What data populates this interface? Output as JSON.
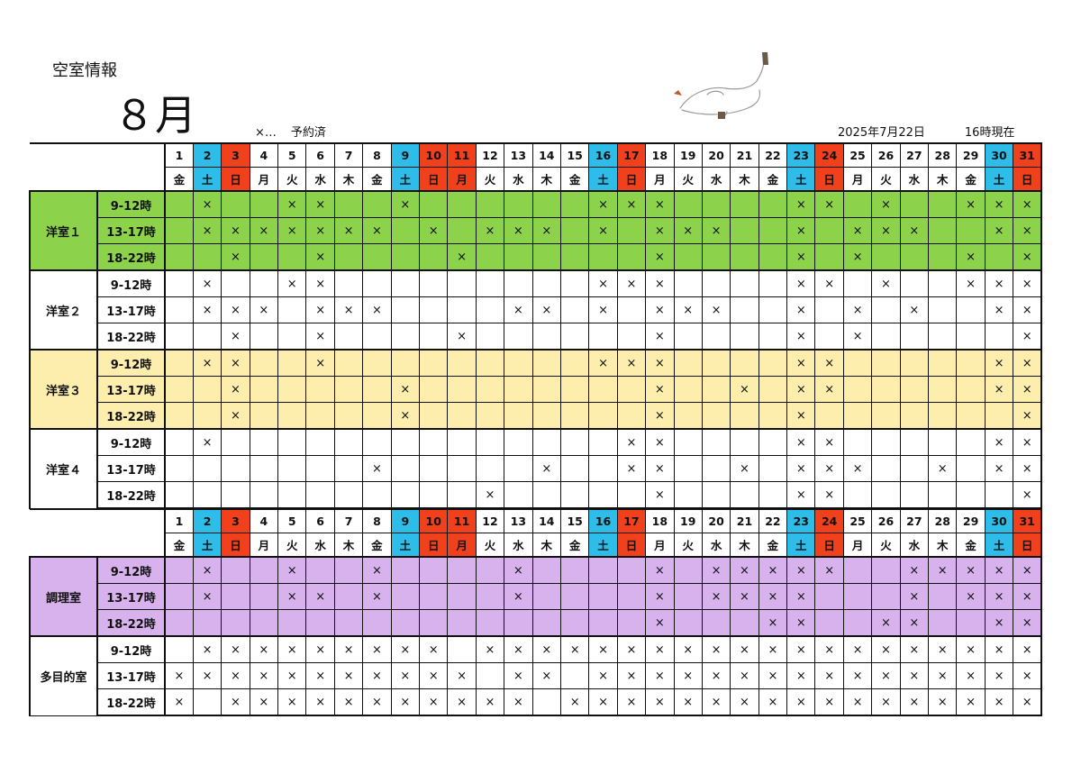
{
  "doc": {
    "title": "空室情報",
    "month": "８月",
    "legend_symbol": "×…",
    "legend_text": "予約済",
    "date": "2025年7月22日",
    "time": "16時現在"
  },
  "colors": {
    "saturday": "#2ebde9",
    "sunday": "#f0401c",
    "green": "#8cd24a",
    "yellow": "#fdeead",
    "purple": "#d7b2ec"
  },
  "days": [
    1,
    2,
    3,
    4,
    5,
    6,
    7,
    8,
    9,
    10,
    11,
    12,
    13,
    14,
    15,
    16,
    17,
    18,
    19,
    20,
    21,
    22,
    23,
    24,
    25,
    26,
    27,
    28,
    29,
    30,
    31
  ],
  "weekdays": [
    "金",
    "土",
    "日",
    "月",
    "火",
    "水",
    "木",
    "金",
    "土",
    "日",
    "月",
    "火",
    "水",
    "木",
    "金",
    "土",
    "日",
    "月",
    "火",
    "水",
    "木",
    "金",
    "土",
    "日",
    "月",
    "火",
    "水",
    "木",
    "金",
    "土",
    "日"
  ],
  "day_types": [
    "",
    "sat",
    "sun",
    "",
    "",
    "",
    "",
    "",
    "sat",
    "sun",
    "sun",
    "",
    "",
    "",
    "",
    "sat",
    "sun",
    "",
    "",
    "",
    "",
    "",
    "sat",
    "sun",
    "",
    "",
    "",
    "",
    "",
    "sat",
    "sun"
  ],
  "mark": "×",
  "tables": [
    {
      "rooms": [
        {
          "name": "洋室１",
          "color": "green",
          "slots": [
            {
              "time": "9-12時",
              "booked": [
                2,
                5,
                6,
                9,
                16,
                17,
                18,
                23,
                24,
                26,
                29,
                30,
                31
              ]
            },
            {
              "time": "13-17時",
              "booked": [
                2,
                3,
                4,
                5,
                6,
                7,
                8,
                10,
                12,
                13,
                14,
                16,
                18,
                19,
                20,
                23,
                25,
                26,
                27,
                30,
                31
              ]
            },
            {
              "time": "18-22時",
              "booked": [
                3,
                6,
                11,
                18,
                23,
                25,
                29,
                31
              ]
            }
          ]
        },
        {
          "name": "洋室２",
          "color": "white",
          "slots": [
            {
              "time": "9-12時",
              "booked": [
                2,
                5,
                6,
                16,
                17,
                18,
                23,
                24,
                26,
                29,
                30,
                31
              ]
            },
            {
              "time": "13-17時",
              "booked": [
                2,
                3,
                4,
                6,
                7,
                8,
                13,
                14,
                16,
                18,
                19,
                20,
                23,
                25,
                27,
                30,
                31
              ]
            },
            {
              "time": "18-22時",
              "booked": [
                3,
                6,
                11,
                18,
                23,
                25,
                31
              ]
            }
          ]
        },
        {
          "name": "洋室３",
          "color": "yellow",
          "slots": [
            {
              "time": "9-12時",
              "booked": [
                2,
                3,
                6,
                16,
                17,
                18,
                23,
                24,
                30,
                31
              ]
            },
            {
              "time": "13-17時",
              "booked": [
                3,
                9,
                18,
                21,
                23,
                24,
                30,
                31
              ]
            },
            {
              "time": "18-22時",
              "booked": [
                3,
                9,
                18,
                23,
                31
              ]
            }
          ]
        },
        {
          "name": "洋室４",
          "color": "white",
          "slots": [
            {
              "time": "9-12時",
              "booked": [
                2,
                17,
                18,
                23,
                24,
                30,
                31
              ]
            },
            {
              "time": "13-17時",
              "booked": [
                8,
                14,
                17,
                18,
                21,
                23,
                24,
                25,
                28,
                30,
                31
              ]
            },
            {
              "time": "18-22時",
              "booked": [
                12,
                18,
                23,
                24,
                31
              ]
            }
          ]
        }
      ]
    },
    {
      "rooms": [
        {
          "name": "調理室",
          "color": "purple",
          "slots": [
            {
              "time": "9-12時",
              "booked": [
                2,
                5,
                8,
                13,
                18,
                20,
                21,
                22,
                23,
                24,
                27,
                28,
                29,
                30,
                31
              ]
            },
            {
              "time": "13-17時",
              "booked": [
                2,
                5,
                6,
                8,
                13,
                18,
                20,
                21,
                22,
                23,
                27,
                29,
                30,
                31
              ]
            },
            {
              "time": "18-22時",
              "booked": [
                18,
                22,
                23,
                26,
                27,
                30,
                31
              ]
            }
          ]
        },
        {
          "name": "多目的室",
          "color": "white",
          "slots": [
            {
              "time": "9-12時",
              "booked": [
                2,
                3,
                4,
                5,
                6,
                7,
                8,
                9,
                10,
                12,
                13,
                14,
                15,
                16,
                17,
                18,
                19,
                20,
                21,
                22,
                23,
                24,
                25,
                26,
                27,
                28,
                29,
                30,
                31
              ]
            },
            {
              "time": "13-17時",
              "booked": [
                1,
                2,
                3,
                4,
                5,
                6,
                7,
                8,
                9,
                10,
                11,
                13,
                14,
                16,
                17,
                18,
                19,
                20,
                21,
                22,
                23,
                24,
                25,
                26,
                27,
                28,
                29,
                30,
                31
              ]
            },
            {
              "time": "18-22時",
              "booked": [
                1,
                3,
                4,
                5,
                6,
                7,
                8,
                9,
                10,
                11,
                12,
                13,
                15,
                16,
                17,
                18,
                19,
                20,
                21,
                22,
                23,
                24,
                25,
                26,
                27,
                28,
                29,
                30,
                31
              ]
            }
          ]
        }
      ]
    }
  ]
}
